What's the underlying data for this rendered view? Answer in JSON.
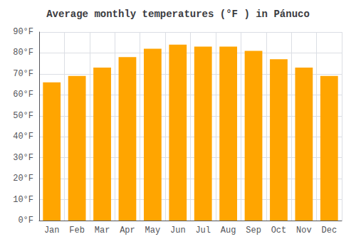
{
  "chart_data": {
    "type": "bar",
    "title": "Average monthly temperatures (°F ) in Pánuco",
    "categories": [
      "Jan",
      "Feb",
      "Mar",
      "Apr",
      "May",
      "Jun",
      "Jul",
      "Aug",
      "Sep",
      "Oct",
      "Nov",
      "Dec"
    ],
    "values": [
      66,
      69,
      73,
      78,
      82,
      84,
      83,
      83,
      81,
      77,
      73,
      69
    ],
    "color": "#FFA500",
    "ylim": [
      0,
      90
    ],
    "yticks": [
      {
        "value": 0,
        "label": "0°F"
      },
      {
        "value": 10,
        "label": "10°F"
      },
      {
        "value": 20,
        "label": "20°F"
      },
      {
        "value": 30,
        "label": "30°F"
      },
      {
        "value": 40,
        "label": "40°F"
      },
      {
        "value": 50,
        "label": "50°F"
      },
      {
        "value": 60,
        "label": "60°F"
      },
      {
        "value": 70,
        "label": "70°F"
      },
      {
        "value": 80,
        "label": "80°F"
      },
      {
        "value": 90,
        "label": "90°F"
      }
    ],
    "grid": true
  }
}
